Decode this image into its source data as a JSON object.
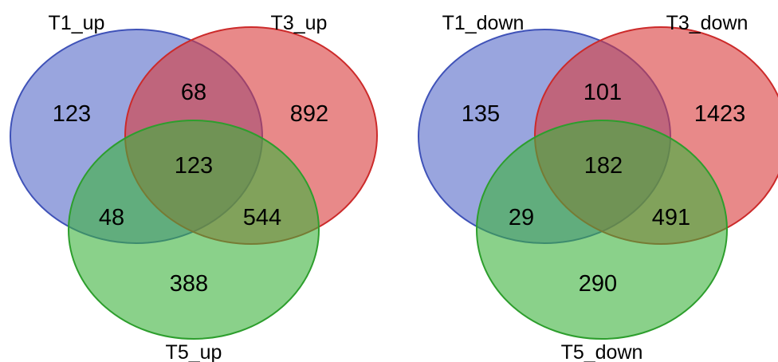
{
  "colors": {
    "set_a_fill": "#5569c8",
    "set_a_stroke": "#3f52b8",
    "set_b_fill": "#d93a3a",
    "set_b_stroke": "#cc2a2a",
    "set_c_fill": "#3cb33c",
    "set_c_stroke": "#2d9e2d"
  },
  "diagrams": [
    {
      "set_labels": {
        "a": "T1_up",
        "b": "T3_up",
        "c": "T5_up"
      },
      "counts": {
        "a_only": "123",
        "ab": "68",
        "b_only": "892",
        "abc": "123",
        "ac": "48",
        "bc": "544",
        "c_only": "388"
      }
    },
    {
      "set_labels": {
        "a": "T1_down",
        "b": "T3_down",
        "c": "T5_down"
      },
      "counts": {
        "a_only": "135",
        "ab": "101",
        "b_only": "1423",
        "abc": "182",
        "ac": "29",
        "bc": "491",
        "c_only": "290"
      }
    }
  ]
}
